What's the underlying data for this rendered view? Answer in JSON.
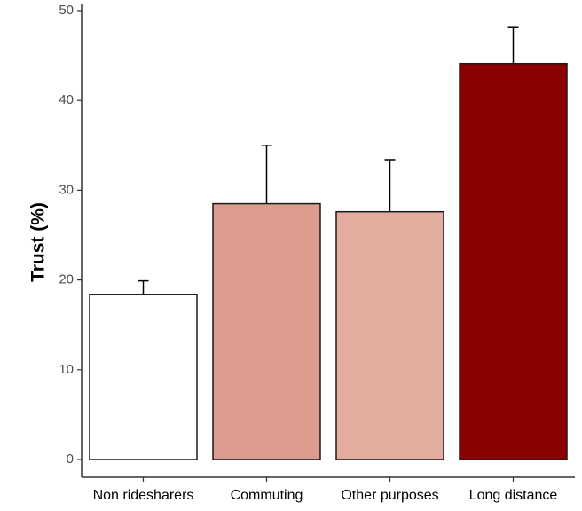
{
  "chart_data": {
    "type": "bar",
    "title": "",
    "xlabel": "",
    "ylabel": "Trust (%)",
    "ylim": [
      0,
      50
    ],
    "yticks": [
      0,
      10,
      20,
      30,
      40,
      50
    ],
    "grid": false,
    "categories": [
      "Non ridesharers",
      "Commuting",
      "Other purposes",
      "Long distance"
    ],
    "values": [
      18.4,
      28.5,
      27.6,
      44.1
    ],
    "error_upper": [
      19.9,
      35.0,
      33.4,
      48.2
    ],
    "colors": [
      "#ffffff",
      "#dc9c8d",
      "#e2ad9f",
      "#8b0000"
    ]
  }
}
